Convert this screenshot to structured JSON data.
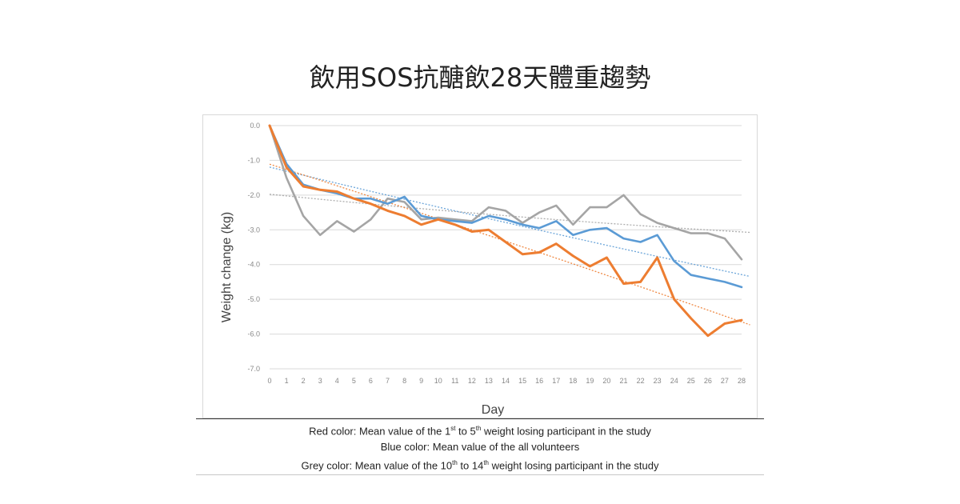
{
  "title": "飲用SOS抗醣飲28天體重趨勢",
  "caption": {
    "red": {
      "before": "Red color: Mean value of the 1",
      "sup1": "st",
      "mid": " to 5",
      "sup2": "th",
      "after": " weight losing participant in the study"
    },
    "blue": "Blue color: Mean value of the all volunteers",
    "grey": {
      "before": "Grey color: Mean value of the 10",
      "sup1": "th",
      "mid": " to 14",
      "sup2": "th",
      "after": " weight losing participant in the study"
    }
  },
  "chart_data": {
    "type": "line",
    "xlabel": "Day",
    "ylabel": "Weight change (kg)",
    "x": [
      0,
      1,
      2,
      3,
      4,
      5,
      6,
      7,
      8,
      9,
      10,
      11,
      12,
      13,
      14,
      15,
      16,
      17,
      18,
      19,
      20,
      21,
      22,
      23,
      24,
      25,
      26,
      27,
      28
    ],
    "y_ticks": [
      "0.0",
      "-1.0",
      "-2.0",
      "-3.0",
      "-4.0",
      "-5.0",
      "-6.0",
      "-7.0"
    ],
    "ylim": [
      -7,
      0
    ],
    "grid": true,
    "trendlines": true,
    "series": [
      {
        "name": "Red color",
        "color": "#ed7d31",
        "values": [
          0.0,
          -1.2,
          -1.75,
          -1.85,
          -1.9,
          -2.1,
          -2.25,
          -2.45,
          -2.6,
          -2.85,
          -2.7,
          -2.85,
          -3.05,
          -3.0,
          -3.35,
          -3.7,
          -3.65,
          -3.4,
          -3.75,
          -4.05,
          -3.8,
          -4.55,
          -4.5,
          -3.8,
          -5.0,
          -5.55,
          -6.05,
          -5.7,
          -5.6
        ]
      },
      {
        "name": "Blue color",
        "color": "#5b9bd5",
        "values": [
          0.0,
          -1.1,
          -1.7,
          -1.85,
          -1.95,
          -2.1,
          -2.1,
          -2.25,
          -2.05,
          -2.6,
          -2.7,
          -2.75,
          -2.8,
          -2.6,
          -2.7,
          -2.85,
          -2.95,
          -2.75,
          -3.15,
          -3.0,
          -2.95,
          -3.25,
          -3.35,
          -3.15,
          -3.9,
          -4.3,
          -4.4,
          -4.5,
          -4.65
        ]
      },
      {
        "name": "Grey color",
        "color": "#a5a5a5",
        "values": [
          0.0,
          -1.5,
          -2.6,
          -3.15,
          -2.75,
          -3.05,
          -2.7,
          -2.1,
          -2.2,
          -2.7,
          -2.65,
          -2.7,
          -2.75,
          -2.35,
          -2.45,
          -2.8,
          -2.5,
          -2.3,
          -2.85,
          -2.35,
          -2.35,
          -2.0,
          -2.55,
          -2.8,
          -2.95,
          -3.1,
          -3.1,
          -3.25,
          -3.85
        ]
      }
    ]
  }
}
